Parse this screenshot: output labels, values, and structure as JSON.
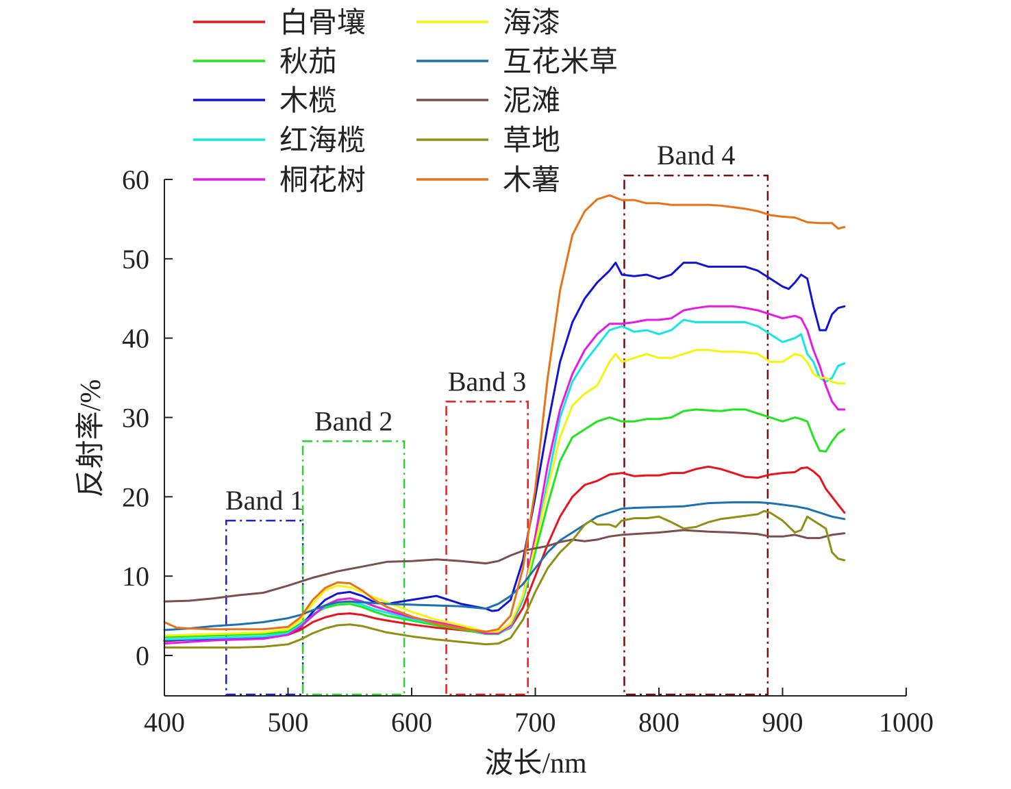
{
  "chart_data": {
    "type": "line",
    "title": "",
    "xlabel": "波长/nm",
    "ylabel": "反射率/%",
    "xlim": [
      400,
      1000
    ],
    "ylim": [
      -5,
      60
    ],
    "xticks": [
      400,
      500,
      600,
      700,
      800,
      900,
      1000
    ],
    "yticks": [
      0,
      10,
      20,
      30,
      40,
      50,
      60
    ],
    "xtick_labels": [
      "400",
      "500",
      "600",
      "700",
      "800",
      "900",
      "1000"
    ],
    "ytick_labels": [
      "0",
      "10",
      "20",
      "30",
      "40",
      "50",
      "60"
    ],
    "grid": false,
    "legend_position": "top-left",
    "legend_columns": 2,
    "bands": [
      {
        "name": "Band 1",
        "x_start": 450,
        "x_end": 512,
        "y_top": 17,
        "color": "#1f1fd6"
      },
      {
        "name": "Band 2",
        "x_start": 512,
        "x_end": 594,
        "y_top": 27,
        "color": "#2bd62b"
      },
      {
        "name": "Band 3",
        "x_start": 628,
        "x_end": 694,
        "y_top": 32,
        "color": "#e51d1d"
      },
      {
        "name": "Band 4",
        "x_start": 772,
        "x_end": 888,
        "y_top": 60.5,
        "color": "#7a0c0c"
      }
    ],
    "series": [
      {
        "name": "白骨壤",
        "color": "#e8131b",
        "x": [
          400,
          420,
          440,
          460,
          480,
          500,
          510,
          520,
          530,
          540,
          550,
          560,
          570,
          580,
          600,
          620,
          640,
          660,
          670,
          680,
          690,
          700,
          710,
          720,
          730,
          740,
          750,
          760,
          770,
          780,
          790,
          800,
          810,
          820,
          830,
          840,
          850,
          860,
          870,
          880,
          890,
          900,
          910,
          915,
          920,
          925,
          930,
          935,
          940,
          945,
          950
        ],
        "y": [
          1.8,
          2,
          2.1,
          2.2,
          2.3,
          2.6,
          3.2,
          4.2,
          4.8,
          5.2,
          5.3,
          5.1,
          4.7,
          4.4,
          3.9,
          3.5,
          3.2,
          2.8,
          2.8,
          3.5,
          6,
          10,
          14,
          17.5,
          20,
          21.5,
          22,
          22.8,
          23,
          22.6,
          22.7,
          22.7,
          23,
          23,
          23.5,
          23.8,
          23.5,
          23,
          22.5,
          22.4,
          22.8,
          23,
          23.1,
          23.6,
          23.7,
          23.2,
          22.5,
          21,
          20,
          19,
          18
        ]
      },
      {
        "name": "秋茄",
        "color": "#1fe61f",
        "x": [
          400,
          420,
          440,
          460,
          480,
          500,
          510,
          520,
          530,
          540,
          550,
          560,
          570,
          580,
          600,
          620,
          640,
          660,
          670,
          680,
          690,
          700,
          710,
          720,
          730,
          740,
          750,
          760,
          770,
          780,
          790,
          800,
          810,
          820,
          830,
          840,
          850,
          860,
          870,
          880,
          890,
          900,
          910,
          915,
          920,
          925,
          930,
          935,
          940,
          945,
          950
        ],
        "y": [
          2.3,
          2.4,
          2.5,
          2.6,
          2.7,
          3,
          4,
          5.2,
          6,
          6.4,
          6.5,
          6.1,
          5.5,
          5,
          4.4,
          3.8,
          3.3,
          2.7,
          2.7,
          3.6,
          7,
          13,
          19,
          24.5,
          27.5,
          28.5,
          29.5,
          30,
          29.5,
          29.5,
          29.8,
          29.8,
          30,
          30.8,
          31,
          30.9,
          30.8,
          31,
          31,
          30.5,
          30,
          29.5,
          30,
          29.8,
          29.5,
          27.5,
          25.8,
          25.7,
          27,
          28,
          28.5
        ]
      },
      {
        "name": "木榄",
        "color": "#1212d9",
        "x": [
          400,
          420,
          440,
          460,
          480,
          500,
          510,
          520,
          530,
          540,
          550,
          560,
          570,
          580,
          600,
          620,
          640,
          660,
          665,
          670,
          680,
          690,
          700,
          710,
          720,
          730,
          740,
          750,
          760,
          765,
          770,
          780,
          790,
          800,
          810,
          820,
          830,
          840,
          850,
          860,
          870,
          880,
          890,
          900,
          905,
          910,
          915,
          920,
          925,
          930,
          935,
          940,
          945,
          950
        ],
        "y": [
          1.9,
          2,
          2.1,
          2.2,
          2.3,
          2.7,
          3.5,
          5.5,
          7,
          7.8,
          8,
          7.5,
          6.7,
          6.5,
          7,
          7.5,
          6.5,
          5.9,
          5.6,
          5.7,
          7,
          12,
          20,
          29,
          37,
          42,
          45,
          47,
          48.5,
          49.5,
          48,
          47.8,
          48,
          47.5,
          48,
          49.5,
          49.5,
          49,
          49,
          49,
          49,
          48.5,
          47.5,
          46.5,
          46.2,
          47,
          48,
          47.5,
          44,
          41,
          41,
          43,
          43.8,
          44
        ]
      },
      {
        "name": "红海榄",
        "color": "#12e6e6",
        "x": [
          400,
          420,
          440,
          460,
          480,
          500,
          510,
          520,
          530,
          540,
          550,
          560,
          570,
          580,
          600,
          620,
          640,
          660,
          670,
          680,
          690,
          700,
          710,
          720,
          730,
          740,
          750,
          760,
          770,
          780,
          790,
          800,
          810,
          820,
          830,
          840,
          850,
          860,
          870,
          880,
          890,
          900,
          910,
          915,
          920,
          925,
          930,
          935,
          940,
          945,
          950
        ],
        "y": [
          2,
          2.1,
          2.2,
          2.3,
          2.4,
          2.8,
          3.8,
          5,
          6.2,
          6.7,
          6.8,
          6.4,
          5.8,
          5.4,
          4.6,
          4,
          3.5,
          2.8,
          2.8,
          3.6,
          7,
          14,
          22,
          30,
          34.5,
          37,
          39,
          41,
          41.5,
          40.8,
          41,
          40.5,
          41,
          42.3,
          42,
          42,
          42,
          42,
          42,
          41.5,
          40.5,
          39.5,
          40,
          40.5,
          38,
          37,
          35,
          34.5,
          35,
          36.5,
          36.8
        ]
      },
      {
        "name": "桐花树",
        "color": "#e619e6",
        "x": [
          400,
          420,
          440,
          460,
          480,
          500,
          510,
          520,
          530,
          540,
          550,
          560,
          570,
          580,
          600,
          620,
          640,
          660,
          670,
          680,
          690,
          700,
          710,
          720,
          730,
          740,
          750,
          760,
          770,
          780,
          790,
          800,
          810,
          820,
          830,
          840,
          850,
          860,
          870,
          880,
          890,
          900,
          910,
          915,
          920,
          925,
          930,
          935,
          940,
          945,
          950
        ],
        "y": [
          1.5,
          1.7,
          1.9,
          2,
          2.1,
          2.6,
          3.6,
          5,
          6.3,
          7,
          7.2,
          6.8,
          6.2,
          5.7,
          4.8,
          4.2,
          3.6,
          2.8,
          2.8,
          3.8,
          7.5,
          15,
          24,
          31,
          35.5,
          38.5,
          40.5,
          41.8,
          41.8,
          42,
          42.3,
          42.3,
          42.5,
          43.5,
          43.8,
          44,
          44,
          44,
          43.8,
          43.5,
          43,
          42.5,
          42.8,
          42.5,
          41,
          38.5,
          36.5,
          34,
          32,
          31,
          31
        ]
      },
      {
        "name": "海漆",
        "color": "#f5f50c",
        "x": [
          400,
          420,
          440,
          460,
          480,
          500,
          510,
          520,
          530,
          540,
          550,
          560,
          570,
          580,
          600,
          620,
          640,
          660,
          670,
          680,
          690,
          700,
          710,
          720,
          730,
          740,
          750,
          760,
          765,
          770,
          780,
          790,
          800,
          810,
          820,
          830,
          840,
          850,
          860,
          870,
          880,
          890,
          900,
          910,
          915,
          920,
          925,
          930,
          935,
          940,
          945,
          950
        ],
        "y": [
          2.5,
          2.6,
          2.7,
          2.8,
          2.9,
          3.3,
          4.5,
          6.5,
          8.2,
          8.8,
          8.6,
          8,
          7.3,
          6.7,
          5.5,
          4.5,
          3.8,
          3,
          3,
          4,
          7.5,
          14,
          21,
          27.5,
          31.5,
          33,
          34,
          37,
          38,
          37,
          37.5,
          38,
          37.5,
          37.5,
          38,
          38.5,
          38.5,
          38.3,
          38.3,
          38.2,
          38,
          37,
          37,
          38,
          37.8,
          37,
          35.5,
          35,
          35,
          34.5,
          34.3,
          34.3
        ]
      },
      {
        "name": "互花米草",
        "color": "#1a72b3",
        "x": [
          400,
          420,
          440,
          460,
          480,
          500,
          510,
          520,
          530,
          540,
          550,
          560,
          580,
          600,
          620,
          640,
          660,
          670,
          680,
          690,
          700,
          710,
          720,
          730,
          740,
          750,
          760,
          770,
          780,
          800,
          820,
          840,
          860,
          880,
          890,
          900,
          910,
          920,
          930,
          940,
          950
        ],
        "y": [
          3.2,
          3.4,
          3.7,
          3.9,
          4.2,
          4.7,
          5.1,
          5.7,
          6.3,
          6.7,
          6.8,
          6.7,
          6.5,
          6.4,
          6.3,
          6.2,
          5.9,
          6.5,
          7.5,
          9,
          11,
          13,
          14.5,
          15.5,
          16.5,
          17.5,
          18,
          18.5,
          18.6,
          18.7,
          18.8,
          19.2,
          19.3,
          19.3,
          19.2,
          19,
          18.8,
          18.5,
          18,
          17.5,
          17.2
        ]
      },
      {
        "name": "泥滩",
        "color": "#7a4f4f",
        "x": [
          400,
          420,
          440,
          460,
          480,
          500,
          520,
          540,
          560,
          580,
          600,
          620,
          640,
          660,
          670,
          680,
          690,
          700,
          710,
          720,
          730,
          740,
          750,
          760,
          770,
          780,
          800,
          820,
          840,
          860,
          880,
          890,
          900,
          910,
          920,
          930,
          940,
          950
        ],
        "y": [
          6.8,
          6.9,
          7.2,
          7.6,
          7.9,
          8.8,
          9.8,
          10.6,
          11.2,
          11.8,
          11.9,
          12.1,
          11.9,
          11.6,
          11.9,
          12.6,
          13.2,
          13.5,
          13.8,
          14.3,
          14.6,
          14.4,
          14.6,
          15,
          15.2,
          15.3,
          15.5,
          15.8,
          15.6,
          15.5,
          15.3,
          15,
          15,
          15.2,
          14.8,
          14.8,
          15.2,
          15.4
        ]
      },
      {
        "name": "草地",
        "color": "#8f8f12",
        "x": [
          400,
          420,
          440,
          460,
          480,
          500,
          510,
          520,
          530,
          540,
          550,
          560,
          570,
          580,
          600,
          620,
          640,
          660,
          670,
          680,
          690,
          700,
          710,
          720,
          730,
          740,
          745,
          750,
          760,
          765,
          770,
          780,
          790,
          800,
          810,
          820,
          830,
          840,
          850,
          860,
          870,
          880,
          885,
          890,
          900,
          910,
          915,
          920,
          925,
          930,
          935,
          940,
          945,
          950
        ],
        "y": [
          1,
          1,
          1,
          1,
          1.1,
          1.4,
          2,
          2.8,
          3.4,
          3.8,
          3.9,
          3.7,
          3.3,
          2.9,
          2.4,
          2,
          1.7,
          1.4,
          1.5,
          2.2,
          4.5,
          8,
          11,
          13,
          14.5,
          16.5,
          17,
          16.5,
          16.5,
          16.2,
          17,
          17.3,
          17.3,
          17.5,
          16.8,
          16,
          16.2,
          16.8,
          17.2,
          17.4,
          17.6,
          17.8,
          18.2,
          18,
          17,
          15.5,
          15.8,
          17.5,
          17,
          16.5,
          16,
          13,
          12.2,
          12
        ]
      },
      {
        "name": "木薯",
        "color": "#e87217",
        "x": [
          400,
          410,
          420,
          440,
          460,
          480,
          500,
          510,
          520,
          530,
          540,
          550,
          560,
          570,
          580,
          600,
          620,
          640,
          660,
          670,
          680,
          690,
          700,
          710,
          720,
          730,
          740,
          750,
          760,
          770,
          780,
          790,
          800,
          810,
          820,
          830,
          840,
          850,
          860,
          870,
          880,
          890,
          900,
          910,
          920,
          930,
          940,
          945,
          950
        ],
        "y": [
          4.2,
          3.5,
          3.4,
          3.3,
          3.3,
          3.3,
          3.6,
          4.8,
          7,
          8.5,
          9.2,
          9.1,
          8.2,
          7,
          6.1,
          4.9,
          4,
          3.4,
          3,
          3.3,
          5,
          11,
          21,
          35,
          46,
          53,
          56,
          57.5,
          58,
          57.4,
          57.4,
          57,
          57,
          56.8,
          56.8,
          56.8,
          56.8,
          56.7,
          56.5,
          56.3,
          56,
          55.5,
          55.3,
          55.2,
          54.6,
          54.5,
          54.5,
          53.8,
          54
        ]
      }
    ]
  }
}
